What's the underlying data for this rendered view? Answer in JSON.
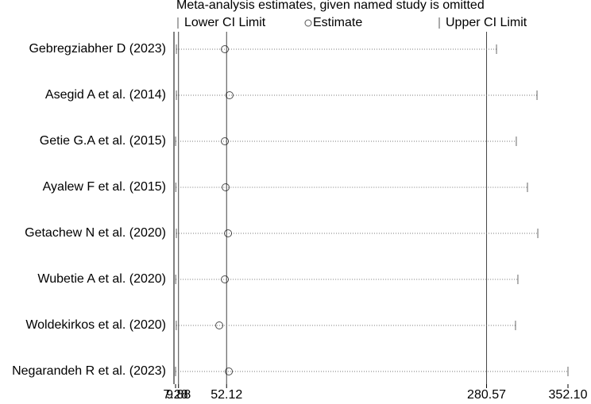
{
  "chart_data": {
    "type": "influence",
    "title": "Meta-analysis estimates, given named study is omitted",
    "categories": [
      "Gebregziabher D (2023)",
      "Asegid A et al.  (2014)",
      "Getie G.A et al. (2015)",
      "Ayalew F et al.  (2015)",
      "Getachew N et al.  (2020)",
      "Wubetie A et al.  (2020)",
      "Woldekirkos et al.  (2020)",
      "Negarandeh R et al. (2023)"
    ],
    "series": [
      {
        "name": "Lower CI Limit",
        "color": "#000000",
        "values": [
          8.0,
          8.0,
          7.3,
          7.5,
          8.0,
          7.4,
          7.9,
          7.28
        ]
      },
      {
        "name": "Estimate",
        "color": "#000000",
        "values": [
          50.6,
          54.7,
          50.6,
          51.3,
          53.4,
          50.6,
          45.7,
          54.1
        ]
      },
      {
        "name": "Upper CI Limit",
        "color": "#000000",
        "values": [
          289.3,
          324.9,
          306.7,
          316.5,
          325.6,
          308.1,
          306.0,
          352.1
        ]
      }
    ],
    "reference_lines": [
      9.88,
      52.12,
      280.57
    ],
    "xlim": [
      7.28,
      352.1
    ],
    "xticks": [
      7.28,
      9.88,
      52.12,
      280.57,
      {
        "value": 352.1,
        "label": "352.10"
      }
    ]
  }
}
